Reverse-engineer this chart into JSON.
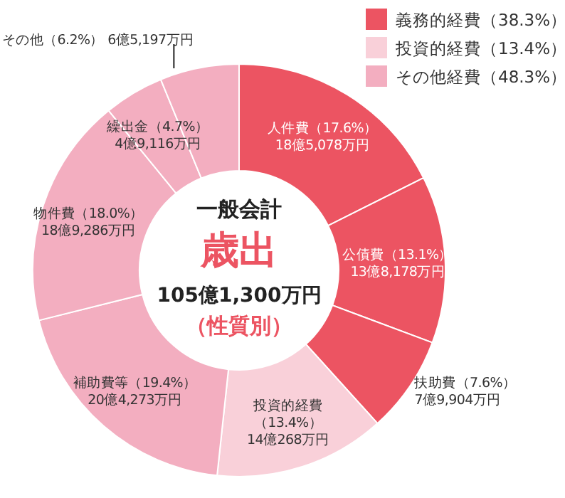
{
  "chart_data": {
    "type": "donut",
    "title": "歳出",
    "subtitle": "一般会計",
    "categories": [
      "人件費",
      "公債費",
      "扶助費",
      "投資的経費",
      "補助費等",
      "物件費",
      "繰出金",
      "その他"
    ],
    "values": [
      17.6,
      13.1,
      7.6,
      13.4,
      19.4,
      18.0,
      4.7,
      6.2
    ],
    "value_labels": [
      "（17.6%）",
      "（13.1%）",
      "（7.6%）",
      "（13.4%）",
      "（19.4%）",
      "（18.0%）",
      "（4.7%）",
      "（6.2%）"
    ],
    "colors": [
      "#ec5462",
      "#ec5462",
      "#ec5462",
      "#f9d0d9",
      "#f3aec0",
      "#f3aec0",
      "#f3aec0",
      "#f3aec0"
    ],
    "annotations": [
      "105億1,300万円",
      "（性質別）",
      "義務的経費（38.3%）",
      "投資的経費（13.4%）",
      "その他経費（48.3%）",
      "18億5,078万円",
      "13億8,178万円",
      "7億9,904万円",
      "14億268万円",
      "20億4,273万円",
      "18億9,286万円",
      "4億9,116万円",
      "6億5,197万円"
    ]
  }
}
